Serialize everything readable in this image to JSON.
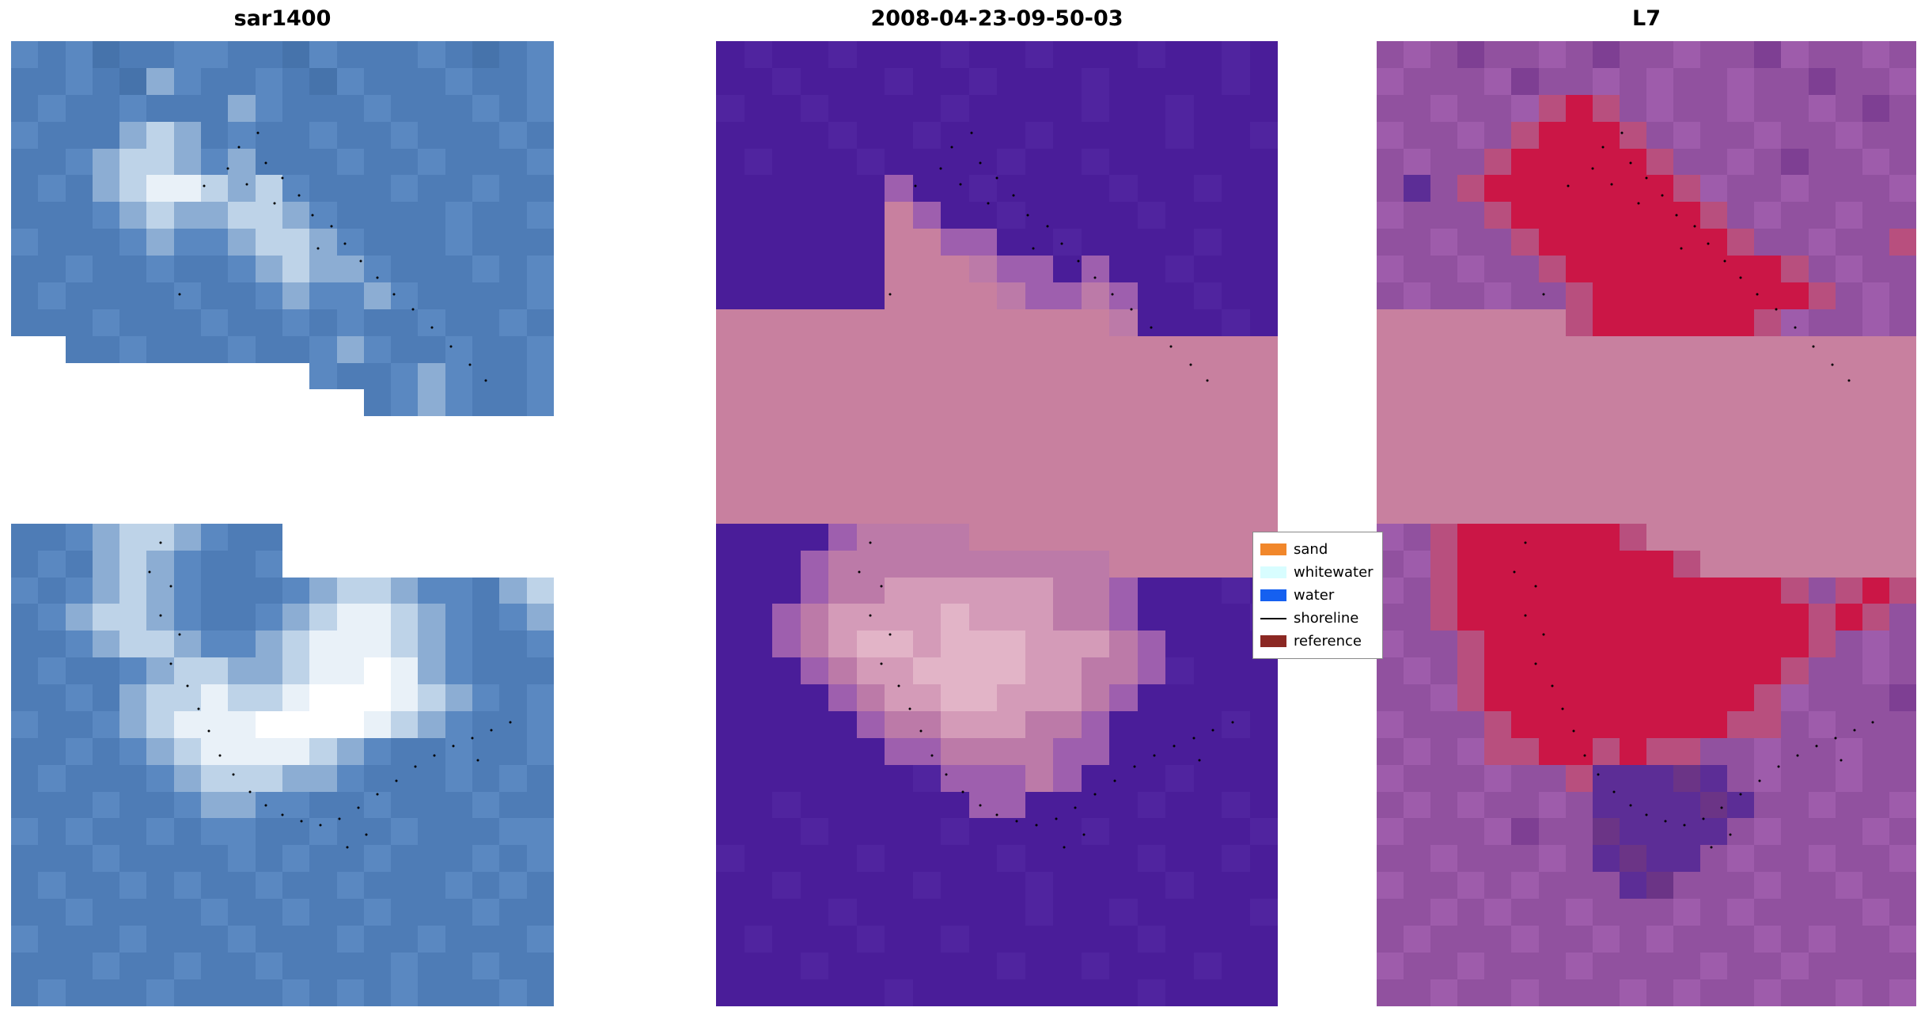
{
  "figure": {
    "background": "#ffffff"
  },
  "chart_data": [
    {
      "type": "heatmap",
      "title": "sar1400",
      "description": "SAR backscatter image tile, blue scale with bright shoreline feature, white no-data gaps",
      "cols": 20,
      "rows": 36,
      "palette": {
        "a": "#4e7cb6",
        "b": "#5a88c1",
        "c": "#4673ab",
        "d": "#8cadd3",
        "e": "#bed3e8",
        "f": "#e9f1f8",
        "g": "#ffffff"
      },
      "grid": [
        "babcaabbaacbaaabacab",
        "aabacdbaabacbaaabaab",
        "abaabaaadbaaabaaabab",
        "baaadedabaabaabaaaba",
        "aabdeedbdaaabaabaaab",
        "abadeffedebaaabaabaa",
        "aaabdeddeedbaaaabaab",
        "baaabdbbdeedbaaabaaa",
        "aabaabaabdeddbaaabab",
        "abaaaabaabdbbdbaaaab",
        "aaabaaabaababaabaaba",
        "..aabaaabaabdbaabaab",
        "...........baabdbaab",
        ".............abdbaab",
        "....................",
        "....................",
        "....................",
        "....................",
        "aabdeedbaa..........",
        "abadedbaab..........",
        "babdedbaaabdeedbbade",
        "abdeedbaabdeffedbabd",
        "aabdeedbbdefffedbaab",
        "abaabdeeddeffgfdbaaa",
        "aabadeefeefgggfedbab",
        "baabdefffggggfedbaab",
        "aababdeffffedbaabaab",
        "abaaabdeeeddbaaababa",
        "aaabaabddbbaabaaabaa",
        "babaababbaabaabaaabb",
        "aaabaaaababaabaaabab",
        "abaababaabaabaaababa",
        "aabaaaabaabaabaaabaa",
        "baaabaaabaaabaabaaab",
        "aaabaabaabaaaabaabaa",
        "abaaabaaaabababaaaba"
      ]
    },
    {
      "type": "heatmap",
      "title": "2008-04-23-09-50-03",
      "description": "Classified scene: purple water, rose sand band, pink probability blobs",
      "cols": 20,
      "rows": 36,
      "palette": {
        "p": "#4a1d99",
        "q": "#50249f",
        "r": "#c8809f",
        "m": "#9e5fae",
        "s": "#bc7aa8",
        "t": "#d49bb8",
        "u": "#e2b4c7"
      },
      "grid": [
        "pqppqpppqppqpppqppqp",
        "ppqpppqppqpppqppppqp",
        "qppqppppqppppqppqppp",
        "ppppqppqpppqppppqppq",
        "pqpppqppppqppqpppppp",
        "ppppppmppqppppqppqpp",
        "pppppprmppqppppqpppp",
        "pppppprrmmppqppppqpp",
        "pppppprrrsmmpmppqppp",
        "pppppprrrrsmmsmppqpp",
        "rrrrrrrrrrrrrrspppqp",
        "rrrrrrrrrrrrrrrrrrrr",
        "rrrrrrrrrrrrrrrrrrrr",
        "rrrrrrrrrrrrrrrrrrrr",
        "rrrrrrrrrrrrrrrrrrrr",
        "rrrrrrrrrrrrrrrrrrrr",
        "rrrrrrrrrrrrrrrrrrrr",
        "rrrrrrrrrrrrrrrrrrrr",
        "ppppmssssrrrrrrrrrrr",
        "pppmssssssssssrrrrrr",
        "pppmssttttttssmpppqp",
        "ppmsttttutttssmppppq",
        "ppmstuutuuutttsmpppp",
        "pppmsttuuuuttssmqppp",
        "ppppmsttuutttsmppppp",
        "pppppmsstttssmppppqp",
        "ppppppmmssssmmpppppp",
        "pppppppqmmmsmpppqppp",
        "ppqppppppmmppppqppqp",
        "pppqppppqppppqpppppq",
        "qppppqppppqppppqppqp",
        "ppqppppqpppqppppqppp",
        "ppppqppppppqppqppppq",
        "pqpppqppqppppppqpppp",
        "pppqppppppqppqpppqpp",
        "ppppppqppppppppqpppp"
      ]
    },
    {
      "type": "heatmap",
      "title": "L7",
      "description": "Landsat 7 false-color tile: magenta background, red turbidity plume, rose sand band, dark indigo patch",
      "cols": 20,
      "rows": 36,
      "palette": {
        "h": "#91519f",
        "i": "#9e5cab",
        "j": "#7e3f93",
        "z": "#b84f7e",
        "x": "#cb1646",
        "r": "#c8809f",
        "d": "#5c2d96",
        "e": "#6b3486"
      },
      "grid": [
        "hihjhhihjhhihhjihhih",
        "ihhhijhhihihhihhjhhi",
        "hhihhizxzhihhihhihjh",
        "ihhihzxxxzhihhihhihh",
        "hihhzxxxxxzhhihjhhih",
        "hdhzxxxxxxxzihhihhhi",
        "ihhhzxxxxxxxzhihhihh",
        "hhihhzxxxxxxxzhhihhz",
        "ihhihhzxxxxxxxxzhihh",
        "hihhihhzxxxxxxxxzhih",
        "rrrrrrrzxxxxxxzihhih",
        "rrrrrrrrrrrrrrrrrrrr",
        "rrrrrrrrrrrrrrrrrrrr",
        "rrrrrrrrrrrrrrrrrrrr",
        "rrrrrrrrrrrrrrrrrrrr",
        "rrrrrrrrrrrrrrrrrrrr",
        "rrrrrrrrrrrrrrrrrrrr",
        "rrrrrrrrrrrrrrrrrrrr",
        "ihzxxxxxxzrrrrrrrrrr",
        "hizxxxxxxxxzrrrrrrrr",
        "ihzxxxxxxxxxxxxzhzxz",
        "hhzxxxxxxxxxxxxxzxzh",
        "ihhzxxxxxxxxxxxxzhih",
        "hihzxxxxxxxxxxxzhhih",
        "hhizxxxxxxxxxxzihhhj",
        "ihhhzxxxxxxxxzzhihhh",
        "hihizzxxzxzzhhihhihh",
        "ihhhihhzdddedhihhihh",
        "hihihhihddddedhhihhi",
        "ihhhijhheddddhihhhih",
        "hhihhhihdeddhihhihhi",
        "ihhihihhhdehhhihhihh",
        "hhihihhihhhihihhhhih",
        "hihhhihhihihhhihihhi",
        "ihhihhhihhhhihhihhhh",
        "hhihhihhhihihhihhihi"
      ]
    }
  ],
  "shoreline_dots": {
    "upper": [
      [
        0.42,
        0.11
      ],
      [
        0.455,
        0.095
      ],
      [
        0.4,
        0.132
      ],
      [
        0.435,
        0.148
      ],
      [
        0.47,
        0.126
      ],
      [
        0.5,
        0.142
      ],
      [
        0.485,
        0.168
      ],
      [
        0.53,
        0.16
      ],
      [
        0.555,
        0.18
      ],
      [
        0.59,
        0.192
      ],
      [
        0.565,
        0.215
      ],
      [
        0.615,
        0.21
      ],
      [
        0.645,
        0.228
      ],
      [
        0.675,
        0.245
      ],
      [
        0.705,
        0.262
      ],
      [
        0.74,
        0.278
      ],
      [
        0.775,
        0.297
      ],
      [
        0.81,
        0.316
      ],
      [
        0.845,
        0.335
      ],
      [
        0.875,
        0.352
      ],
      [
        0.31,
        0.262
      ],
      [
        0.355,
        0.15
      ]
    ],
    "lower": [
      [
        0.275,
        0.52
      ],
      [
        0.255,
        0.55
      ],
      [
        0.295,
        0.565
      ],
      [
        0.275,
        0.595
      ],
      [
        0.31,
        0.615
      ],
      [
        0.295,
        0.645
      ],
      [
        0.325,
        0.668
      ],
      [
        0.345,
        0.692
      ],
      [
        0.365,
        0.715
      ],
      [
        0.385,
        0.74
      ],
      [
        0.41,
        0.76
      ],
      [
        0.44,
        0.778
      ],
      [
        0.47,
        0.792
      ],
      [
        0.5,
        0.802
      ],
      [
        0.535,
        0.808
      ],
      [
        0.57,
        0.812
      ],
      [
        0.605,
        0.806
      ],
      [
        0.64,
        0.794
      ],
      [
        0.675,
        0.78
      ],
      [
        0.71,
        0.766
      ],
      [
        0.745,
        0.752
      ],
      [
        0.78,
        0.74
      ],
      [
        0.815,
        0.73
      ],
      [
        0.85,
        0.722
      ],
      [
        0.885,
        0.714
      ],
      [
        0.92,
        0.706
      ],
      [
        0.62,
        0.835
      ],
      [
        0.655,
        0.822
      ],
      [
        0.86,
        0.745
      ]
    ]
  },
  "legend": {
    "items": [
      {
        "label": "sand",
        "color": "#f1872b",
        "type": "patch"
      },
      {
        "label": "whitewater",
        "color": "#d8fdff",
        "type": "patch"
      },
      {
        "label": "water",
        "color": "#1560f0",
        "type": "patch"
      },
      {
        "label": "shoreline",
        "color": "#000000",
        "type": "line"
      },
      {
        "label": "reference",
        "color": "#8b2823",
        "type": "patch"
      }
    ]
  }
}
